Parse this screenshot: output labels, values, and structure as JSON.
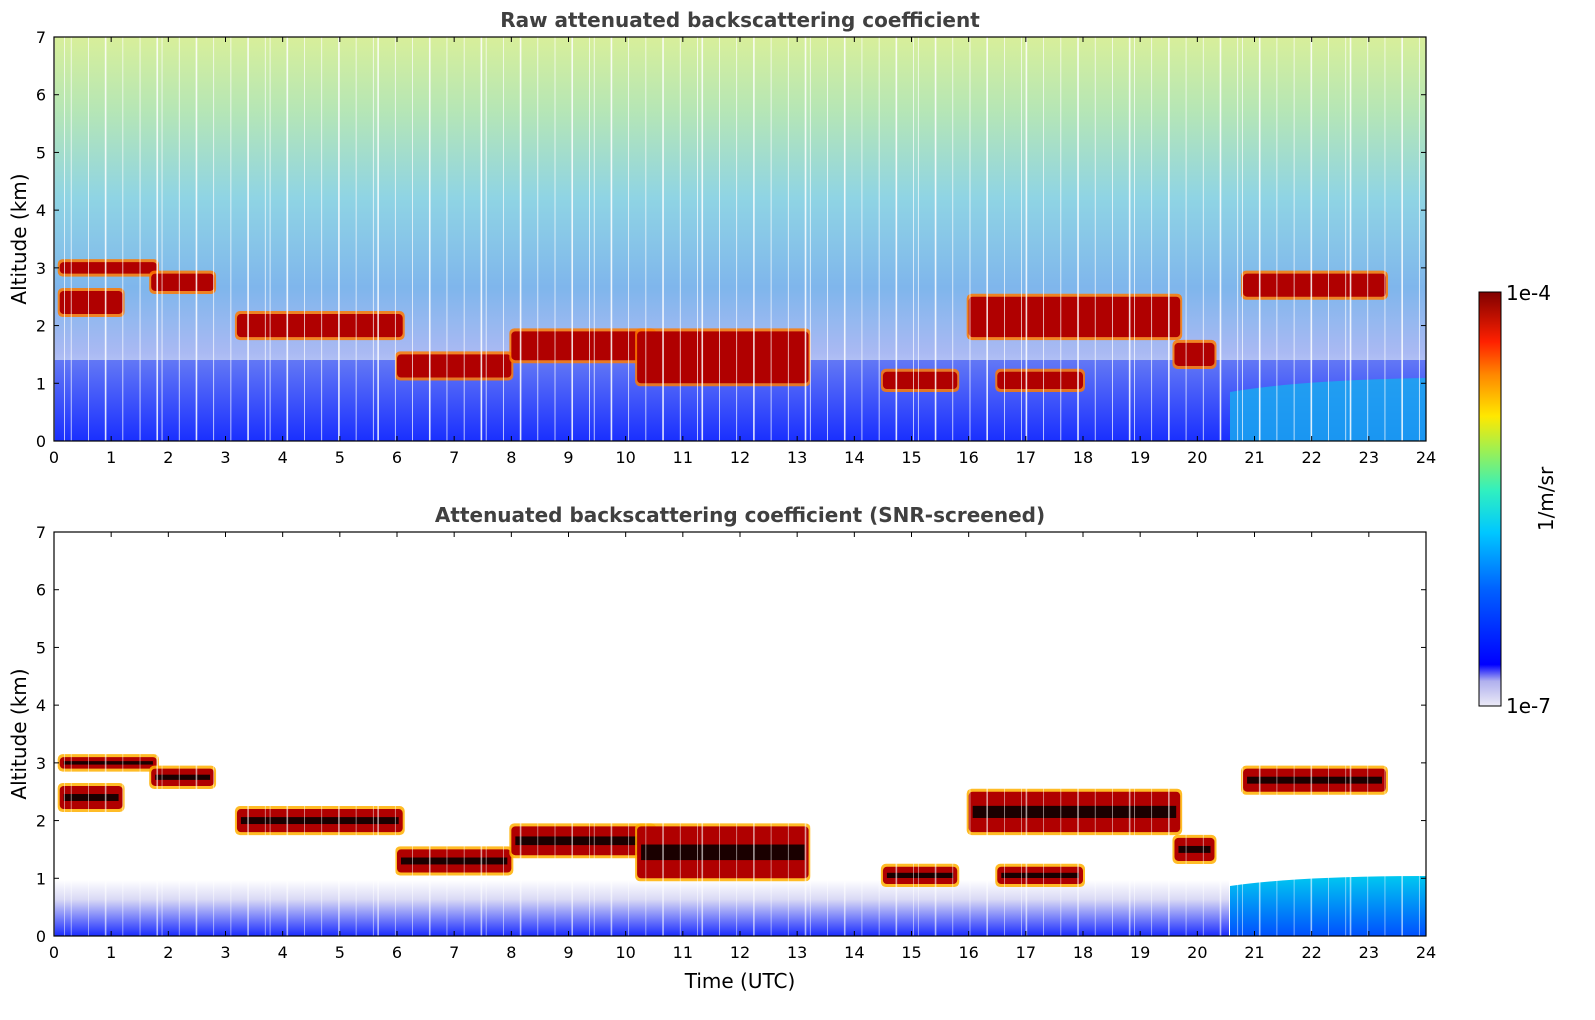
{
  "chart_data": [
    {
      "type": "heatmap",
      "title": "Raw attenuated backscattering coefficient",
      "xlabel": "",
      "ylabel": "Altitude (km)",
      "xlim": [
        0,
        24
      ],
      "ylim": [
        0,
        7
      ],
      "xticks": [
        "0",
        "1",
        "2",
        "3",
        "4",
        "5",
        "6",
        "7",
        "8",
        "9",
        "10",
        "11",
        "12",
        "13",
        "14",
        "15",
        "16",
        "17",
        "18",
        "19",
        "20",
        "21",
        "22",
        "23",
        "24"
      ],
      "yticks": [
        "0",
        "1",
        "2",
        "3",
        "4",
        "5",
        "6",
        "7"
      ],
      "layers": [
        {
          "name": "cloud",
          "x_start": 0.1,
          "x_end": 1.8,
          "z_bottom": 2.9,
          "z_top": 3.1
        },
        {
          "name": "cloud",
          "x_start": 0.1,
          "x_end": 1.2,
          "z_bottom": 2.2,
          "z_top": 2.6
        },
        {
          "name": "cloud",
          "x_start": 1.7,
          "x_end": 2.8,
          "z_bottom": 2.6,
          "z_top": 2.9
        },
        {
          "name": "cloud",
          "x_start": 3.2,
          "x_end": 6.1,
          "z_bottom": 1.8,
          "z_top": 2.2
        },
        {
          "name": "cloud",
          "x_start": 6.0,
          "x_end": 8.0,
          "z_bottom": 1.1,
          "z_top": 1.5
        },
        {
          "name": "cloud",
          "x_start": 8.0,
          "x_end": 10.5,
          "z_bottom": 1.4,
          "z_top": 1.9
        },
        {
          "name": "cloud",
          "x_start": 10.2,
          "x_end": 13.2,
          "z_bottom": 1.0,
          "z_top": 1.9
        },
        {
          "name": "cloud",
          "x_start": 14.5,
          "x_end": 15.8,
          "z_bottom": 0.9,
          "z_top": 1.2
        },
        {
          "name": "cloud",
          "x_start": 16.0,
          "x_end": 19.7,
          "z_bottom": 1.8,
          "z_top": 2.5
        },
        {
          "name": "cloud",
          "x_start": 16.5,
          "x_end": 18.0,
          "z_bottom": 0.9,
          "z_top": 1.2
        },
        {
          "name": "cloud",
          "x_start": 19.6,
          "x_end": 20.3,
          "z_bottom": 1.3,
          "z_top": 1.7
        },
        {
          "name": "cloud",
          "x_start": 20.8,
          "x_end": 23.3,
          "z_bottom": 2.5,
          "z_top": 2.9
        }
      ]
    },
    {
      "type": "heatmap",
      "title": "Attenuated backscattering coefficient (SNR-screened)",
      "xlabel": "Time (UTC)",
      "ylabel": "Altitude (km)",
      "xlim": [
        0,
        24
      ],
      "ylim": [
        0,
        7
      ],
      "xticks": [
        "0",
        "1",
        "2",
        "3",
        "4",
        "5",
        "6",
        "7",
        "8",
        "9",
        "10",
        "11",
        "12",
        "13",
        "14",
        "15",
        "16",
        "17",
        "18",
        "19",
        "20",
        "21",
        "22",
        "23",
        "24"
      ],
      "yticks": [
        "0",
        "1",
        "2",
        "3",
        "4",
        "5",
        "6",
        "7"
      ]
    }
  ],
  "colorbar": {
    "label": "1/m/sr",
    "max_label": "1e-4",
    "min_label": "1e-7",
    "colors": [
      "#ecebf7",
      "#c8c8f0",
      "#9595ea",
      "#0000ff",
      "#0050ff",
      "#00a0ff",
      "#00e0f0",
      "#60f0a0",
      "#c0f040",
      "#ffe000",
      "#ff8000",
      "#ff2000",
      "#c00000",
      "#800000"
    ]
  }
}
